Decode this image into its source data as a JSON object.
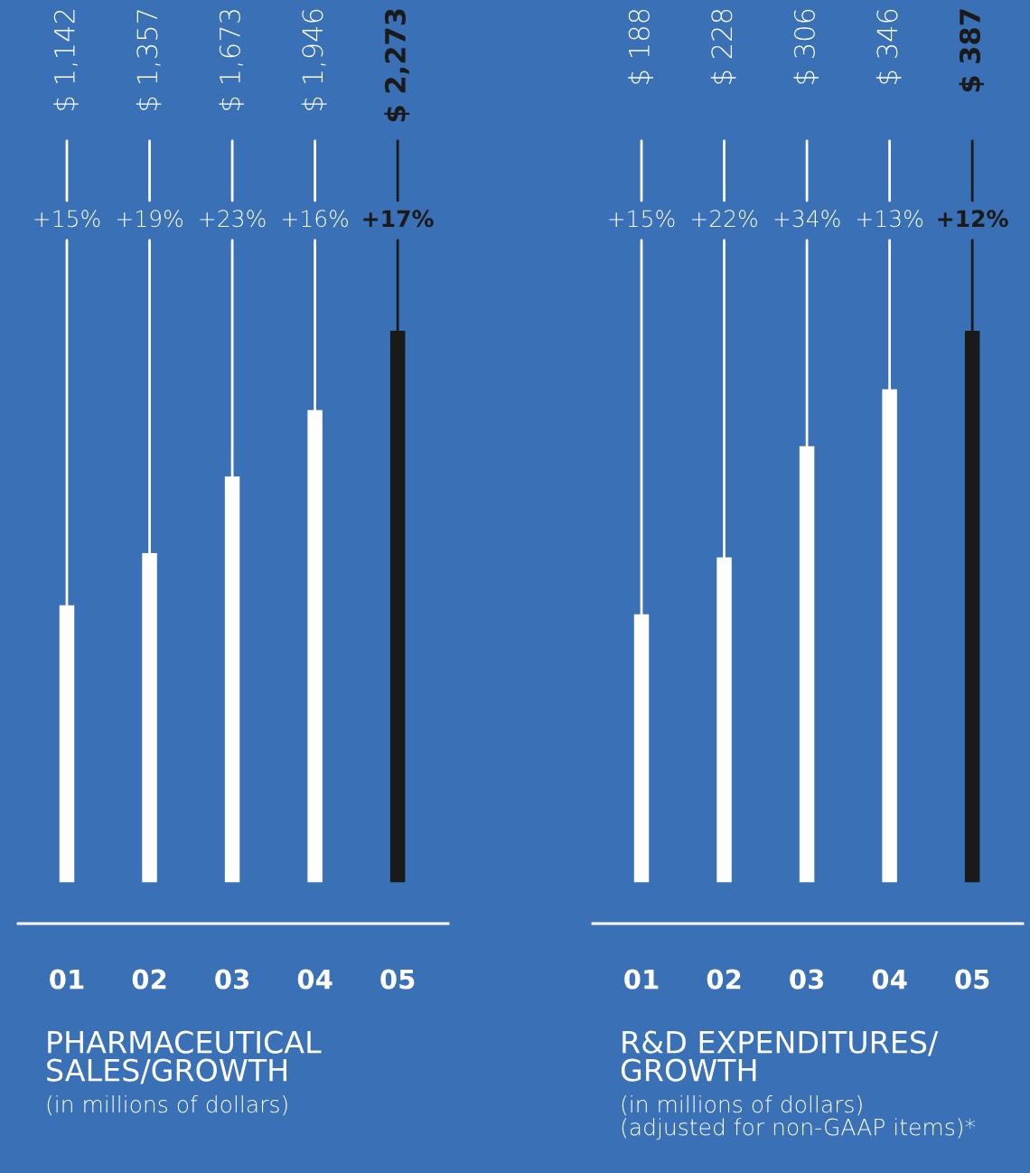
{
  "chart_data": [
    {
      "type": "bar",
      "title": "PHARMACEUTICAL\nSALES/GROWTH",
      "subtitle": "(in millions of dollars)",
      "categories": [
        "01",
        "02",
        "03",
        "04",
        "05"
      ],
      "values": [
        1142,
        1357,
        1673,
        1946,
        2273
      ],
      "colors": [
        "#ffffff",
        "#ffffff",
        "#ffffff",
        "#ffffff",
        "#1a1a1a"
      ],
      "value_labels": [
        "$ 1,142",
        "$ 1,357",
        "$ 1,673",
        "$ 1,946",
        "$ 2,273"
      ],
      "annotations": [
        {
          "text": "+15%",
          "x": "01"
        },
        {
          "text": "+19%",
          "x": "02"
        },
        {
          "text": "+23%",
          "x": "03"
        },
        {
          "text": "+16%",
          "x": "04"
        },
        {
          "text": "+17%",
          "x": "05"
        }
      ]
    },
    {
      "type": "bar",
      "title": "R&D EXPENDITURES/\nGROWTH",
      "subtitle": "(in millions of dollars)\n(adjusted for non-GAAP items)*",
      "categories": [
        "01",
        "02",
        "03",
        "04",
        "05"
      ],
      "values": [
        188,
        228,
        306,
        346,
        387
      ],
      "colors": [
        "#ffffff",
        "#ffffff",
        "#ffffff",
        "#ffffff",
        "#1a1a1a"
      ],
      "value_labels": [
        "$ 188",
        "$ 228",
        "$ 306",
        "$ 346",
        "$ 387"
      ],
      "annotations": [
        {
          "text": "+15%",
          "x": "01"
        },
        {
          "text": "+22%",
          "x": "02"
        },
        {
          "text": "+34%",
          "x": "03"
        },
        {
          "text": "+13%",
          "x": "04"
        },
        {
          "text": "+12%",
          "x": "05"
        }
      ]
    }
  ]
}
